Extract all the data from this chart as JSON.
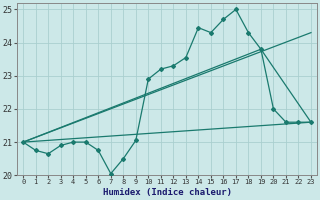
{
  "xlabel": "Humidex (Indice chaleur)",
  "bg_color": "#cce8e8",
  "grid_color": "#aacfcf",
  "line_color": "#1a7a6e",
  "xlim": [
    -0.5,
    23.5
  ],
  "ylim": [
    20.0,
    25.2
  ],
  "yticks": [
    20,
    21,
    22,
    23,
    24,
    25
  ],
  "xticks": [
    0,
    1,
    2,
    3,
    4,
    5,
    6,
    7,
    8,
    9,
    10,
    11,
    12,
    13,
    14,
    15,
    16,
    17,
    18,
    19,
    20,
    21,
    22,
    23
  ],
  "line1_x": [
    0,
    1,
    2,
    3,
    4,
    5,
    6,
    7,
    8,
    9,
    10,
    11,
    12,
    13,
    14,
    15,
    16,
    17,
    18,
    19,
    20,
    21,
    22,
    23
  ],
  "line1_y": [
    21.0,
    20.75,
    20.65,
    20.9,
    21.0,
    21.0,
    20.75,
    20.05,
    20.5,
    21.05,
    22.9,
    23.2,
    23.3,
    23.55,
    24.45,
    24.3,
    24.7,
    25.0,
    24.3,
    23.8,
    22.0,
    21.6,
    21.6,
    21.6
  ],
  "line2_x": [
    0,
    19,
    23
  ],
  "line2_y": [
    21.0,
    23.8,
    21.6
  ],
  "line3_x": [
    0,
    23
  ],
  "line3_y": [
    21.0,
    24.3
  ],
  "line4_x": [
    0,
    23
  ],
  "line4_y": [
    21.0,
    21.6
  ]
}
